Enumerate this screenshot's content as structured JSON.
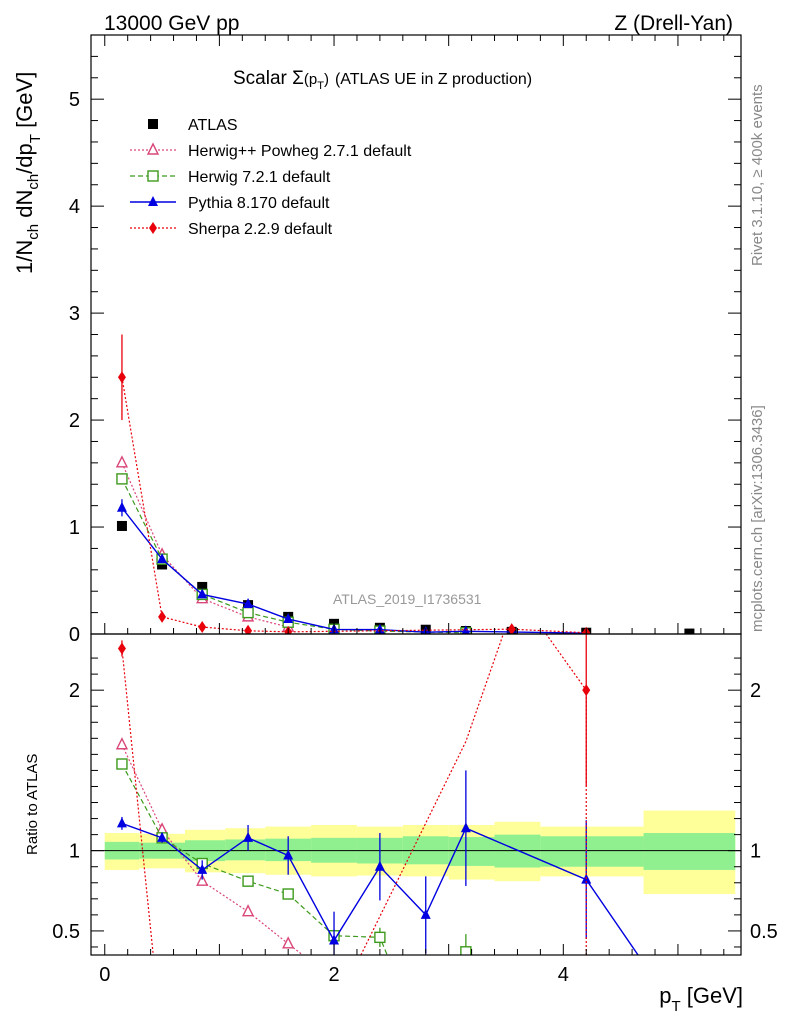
{
  "header": {
    "left": "13000 GeV pp",
    "right": "Z (Drell-Yan)"
  },
  "side_labels": {
    "rivet": "Rivet 3.1.10, ≥ 400k events",
    "mcplots": "mcplots.cern.ch [arXiv:1306.3436]"
  },
  "plot_title": {
    "main": "Scalar Σ",
    "arg": "(p",
    "arg_sub": "T",
    "arg_close": ")",
    "rest": "(ATLAS UE in Z production)"
  },
  "watermark": "ATLAS_2019_I1736531",
  "axis_labels": {
    "y_main": "1/N",
    "y_main_sub1": "ch",
    "y_main_mid": " dN",
    "y_main_sub2": "ch",
    "y_main_mid2": "/dp",
    "y_main_sub3": "T",
    "y_main_unit": " [GeV]",
    "y_ratio": "Ratio to ATLAS",
    "x": "p",
    "x_sub": "T",
    "x_unit": " [GeV]"
  },
  "colors": {
    "atlas": "#000000",
    "herwigpp": "#d9467a",
    "herwig7": "#3d9a1c",
    "pythia": "#0000e0",
    "sherpa": "#e8000b",
    "band_inner": "#90f090",
    "band_outer": "#ffff99"
  },
  "chart_data": {
    "type": "scatter",
    "x_axis": {
      "range": [
        -0.12,
        5.55
      ],
      "ticks": [
        0,
        2,
        4
      ],
      "label": "p_T [GeV]"
    },
    "main_panel": {
      "y_range": [
        0,
        5.6
      ],
      "y_ticks": [
        0,
        1,
        2,
        3,
        4,
        5
      ],
      "label": "1/N_ch dN_ch/dp_T [GeV]"
    },
    "ratio_panel": {
      "y_range": [
        0.35,
        2.35
      ],
      "y_ticks": [
        0.5,
        1,
        2
      ],
      "label": "Ratio to ATLAS",
      "band_inner": [
        {
          "x0": 0.0,
          "x1": 0.3,
          "lo": 0.945,
          "hi": 1.055
        },
        {
          "x0": 0.3,
          "x1": 0.7,
          "lo": 0.95,
          "hi": 1.05
        },
        {
          "x0": 0.7,
          "x1": 1.05,
          "lo": 0.935,
          "hi": 1.065
        },
        {
          "x0": 1.05,
          "x1": 1.4,
          "lo": 0.94,
          "hi": 1.07
        },
        {
          "x0": 1.4,
          "x1": 1.8,
          "lo": 0.935,
          "hi": 1.075
        },
        {
          "x0": 1.8,
          "x1": 2.2,
          "lo": 0.925,
          "hi": 1.08
        },
        {
          "x0": 2.2,
          "x1": 2.6,
          "lo": 0.92,
          "hi": 1.08
        },
        {
          "x0": 2.6,
          "x1": 3.0,
          "lo": 0.915,
          "hi": 1.09
        },
        {
          "x0": 3.0,
          "x1": 3.4,
          "lo": 0.905,
          "hi": 1.085
        },
        {
          "x0": 3.4,
          "x1": 3.8,
          "lo": 0.895,
          "hi": 1.1
        },
        {
          "x0": 3.8,
          "x1": 4.7,
          "lo": 0.9,
          "hi": 1.09
        },
        {
          "x0": 4.7,
          "x1": 5.5,
          "lo": 0.88,
          "hi": 1.11
        }
      ],
      "band_outer": [
        {
          "x0": 0.0,
          "x1": 0.3,
          "lo": 0.88,
          "hi": 1.11
        },
        {
          "x0": 0.3,
          "x1": 0.7,
          "lo": 0.89,
          "hi": 1.105
        },
        {
          "x0": 0.7,
          "x1": 1.05,
          "lo": 0.865,
          "hi": 1.13
        },
        {
          "x0": 1.05,
          "x1": 1.4,
          "lo": 0.86,
          "hi": 1.14
        },
        {
          "x0": 1.4,
          "x1": 1.8,
          "lo": 0.85,
          "hi": 1.15
        },
        {
          "x0": 1.8,
          "x1": 2.2,
          "lo": 0.84,
          "hi": 1.16
        },
        {
          "x0": 2.2,
          "x1": 2.6,
          "lo": 0.845,
          "hi": 1.15
        },
        {
          "x0": 2.6,
          "x1": 3.0,
          "lo": 0.84,
          "hi": 1.16
        },
        {
          "x0": 3.0,
          "x1": 3.4,
          "lo": 0.82,
          "hi": 1.16
        },
        {
          "x0": 3.4,
          "x1": 3.8,
          "lo": 0.81,
          "hi": 1.18
        },
        {
          "x0": 3.8,
          "x1": 4.7,
          "lo": 0.84,
          "hi": 1.15
        },
        {
          "x0": 4.7,
          "x1": 5.5,
          "lo": 0.73,
          "hi": 1.25
        }
      ]
    },
    "series": [
      {
        "name": "ATLAS",
        "key": "atlas",
        "marker": "square-filled",
        "line": "none",
        "x": [
          0.15,
          0.5,
          0.85,
          1.25,
          1.6,
          2.0,
          2.4,
          2.8,
          3.15,
          3.55,
          4.2,
          5.1
        ],
        "values": [
          1.01,
          0.65,
          0.44,
          0.27,
          0.16,
          0.095,
          0.058,
          0.04,
          0.028,
          0.02,
          0.012,
          0.004
        ],
        "err": [
          0.02,
          0.015,
          0.012,
          0.01,
          0.006,
          0.004,
          0.003,
          0.002,
          0.002,
          0.0015,
          0.001,
          0.0005
        ]
      },
      {
        "name": "Herwig++ Powheg 2.7.1 default",
        "key": "herwigpp",
        "marker": "triangle-open",
        "line": "dotted",
        "x": [
          0.15,
          0.5,
          0.85,
          1.25,
          1.6
        ],
        "values": [
          1.6,
          0.74,
          0.33,
          0.16,
          0.065
        ],
        "ratio": [
          1.66,
          1.13,
          0.81,
          0.62,
          0.42
        ],
        "ratio_tail": [
          {
            "x": 2.0,
            "y": 0.2
          }
        ]
      },
      {
        "name": "Herwig 7.2.1 default",
        "key": "herwig7",
        "marker": "square-open",
        "line": "dashed",
        "x": [
          0.15,
          0.5,
          0.85,
          1.25,
          1.6,
          2.0,
          2.4,
          3.15
        ],
        "values": [
          1.45,
          0.7,
          0.37,
          0.2,
          0.11,
          0.044,
          0.027,
          0.011
        ],
        "ratio": [
          1.54,
          1.08,
          0.92,
          0.81,
          0.73,
          0.47,
          0.46,
          0.37
        ],
        "ratio_err": [
          0.03,
          0.02,
          0.02,
          0.015,
          0.025,
          0.04,
          0.06,
          0.11
        ],
        "ratio_gap_after": 2.4
      },
      {
        "name": "Pythia 8.170 default",
        "key": "pythia",
        "marker": "triangle-filled",
        "line": "solid",
        "x": [
          0.15,
          0.5,
          0.85,
          1.25,
          1.6,
          2.0,
          2.4,
          2.8,
          3.15,
          4.2
        ],
        "values": [
          1.18,
          0.7,
          0.37,
          0.28,
          0.14,
          0.043,
          0.041,
          0.017,
          0.025,
          0.008
        ],
        "err": [
          0.08,
          0.03,
          0.02,
          0.02,
          0.02,
          0.01,
          0.01,
          0.01,
          0.01,
          0.005
        ],
        "ratio": [
          1.17,
          1.08,
          0.88,
          1.08,
          0.97,
          0.44,
          0.9,
          0.6,
          1.14,
          0.82
        ],
        "ratio_err": [
          0.04,
          0.03,
          0.06,
          0.08,
          0.12,
          0.18,
          0.21,
          0.24,
          0.36,
          0.37
        ],
        "ratio_tail": [
          {
            "x": 4.7,
            "y": 0.3
          }
        ]
      },
      {
        "name": "Sherpa 2.2.9 default",
        "key": "sherpa",
        "marker": "diamond-filled",
        "line": "dotted",
        "x": [
          0.15,
          0.5,
          0.85,
          1.25,
          1.6,
          3.55,
          4.2
        ],
        "values": [
          2.4,
          0.16,
          0.065,
          0.03,
          0.02,
          0.045,
          0.012
        ],
        "err": [
          0.4,
          0.02,
          0.01,
          0.005,
          0.004,
          0.01,
          0.004
        ],
        "ratio_points": [
          {
            "x": 0.15,
            "y": 2.26,
            "err": 0.05
          },
          {
            "x": 4.2,
            "y": 2.0,
            "err": 0.6
          }
        ],
        "ratio_path": [
          {
            "x": 0.15,
            "y": 2.26
          },
          {
            "x": 0.43,
            "y": 0.3
          },
          {
            "x": 2.2,
            "y": 0.3
          },
          {
            "x": 3.15,
            "y": 1.68
          },
          {
            "x": 3.55,
            "y": 2.5
          },
          {
            "x": 3.7,
            "y": 2.5
          },
          {
            "x": 4.2,
            "y": 2.0
          },
          {
            "x": 4.2,
            "y": 0.3
          }
        ]
      }
    ],
    "legend_position": "top-left"
  }
}
